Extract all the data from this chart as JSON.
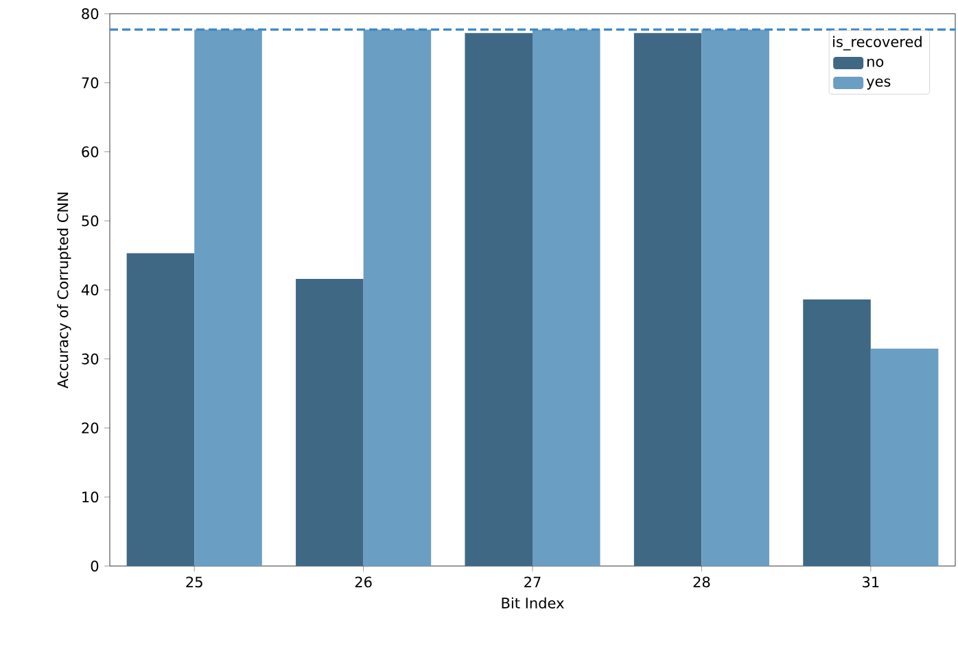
{
  "chart_data": {
    "type": "bar",
    "xlabel": "Bit Index",
    "ylabel": "Accuracy of Corrupted CNN",
    "legend_title": "is_recovered",
    "categories": [
      "25",
      "26",
      "27",
      "28",
      "31"
    ],
    "series": [
      {
        "name": "no",
        "color": "#3f6885",
        "values": [
          45.3,
          41.6,
          77.2,
          77.2,
          38.6
        ]
      },
      {
        "name": "yes",
        "color": "#6a9ec2",
        "values": [
          77.7,
          77.7,
          77.7,
          77.7,
          31.5
        ]
      }
    ],
    "ylim": [
      0,
      80
    ],
    "yticks": [
      0,
      10,
      20,
      30,
      40,
      50,
      60,
      70,
      80
    ],
    "ref_lines": [
      {
        "axis": "y",
        "value": 77.7,
        "color": "#3a87c8",
        "line_style": "dashed"
      }
    ],
    "legend": "top right",
    "grid": false
  }
}
